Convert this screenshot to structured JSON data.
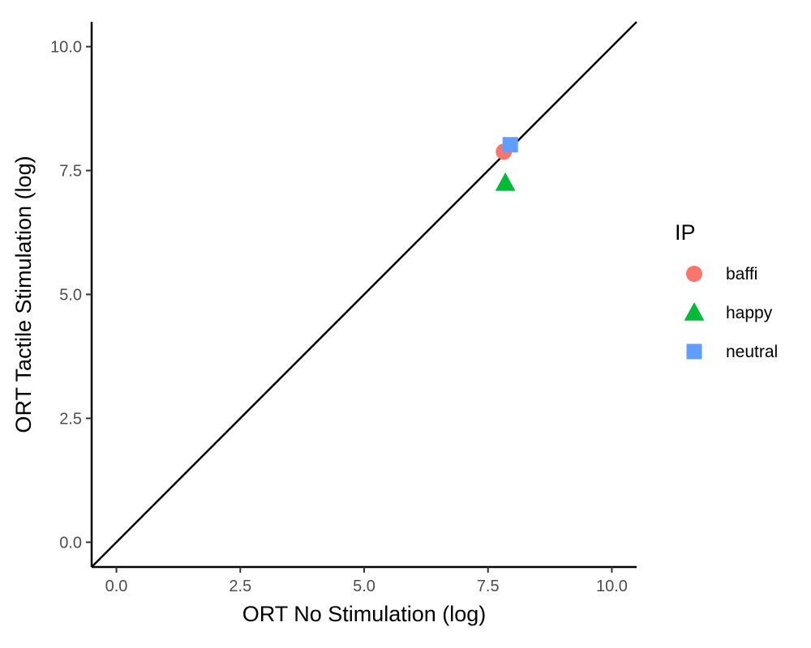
{
  "chart_data": {
    "type": "scatter",
    "xlabel": "ORT No Stimulation (log)",
    "ylabel": "ORT Tactile Stimulation (log)",
    "xlim": [
      -0.5,
      10.5
    ],
    "ylim": [
      -0.5,
      10.5
    ],
    "x_ticks": [
      0,
      2.5,
      5,
      7.5,
      10
    ],
    "y_ticks": [
      0,
      2.5,
      5,
      7.5,
      10
    ],
    "x_tick_labels": [
      "0.0",
      "2.5",
      "5.0",
      "7.5",
      "10.0"
    ],
    "y_tick_labels": [
      "0.0",
      "2.5",
      "5.0",
      "7.5",
      "10.0"
    ],
    "grid": false,
    "reference_line": {
      "type": "identity",
      "slope": 1,
      "intercept": 0
    },
    "legend": {
      "title": "IP",
      "placement": "right"
    },
    "series": [
      {
        "name": "baffi",
        "shape": "circle",
        "color": "#F8766D",
        "points": [
          {
            "x": 7.82,
            "y": 7.88
          }
        ]
      },
      {
        "name": "happy",
        "shape": "triangle",
        "color": "#00BA38",
        "points": [
          {
            "x": 7.85,
            "y": 7.25
          }
        ]
      },
      {
        "name": "neutral",
        "shape": "square",
        "color": "#619CFF",
        "points": [
          {
            "x": 7.95,
            "y": 8.02
          }
        ]
      }
    ]
  }
}
